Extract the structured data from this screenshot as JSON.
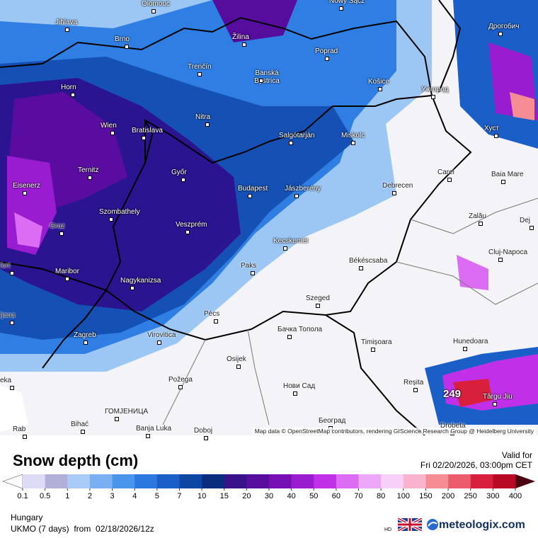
{
  "map": {
    "cities": [
      "Olomouc",
      "Nowy Sącz",
      "Jihlava",
      "Brno",
      "Žilina",
      "Poprad",
      "Дрогобич",
      "Trenčín",
      "Banská Bystrica",
      "Horn",
      "Košice",
      "Ужгород",
      "Wien",
      "Bratislava",
      "Nitra",
      "Salgótarján",
      "Miskolc",
      "Хуст",
      "Ternitz",
      "Győr",
      "Carei",
      "Baia Mare",
      "Eisenerz",
      "Budapest",
      "Jászberény",
      "Debrecen",
      "Szombathely",
      "Zalău",
      "Graz",
      "Veszprém",
      "Dej",
      "Kecskemét",
      "Cluj-Napoca",
      "Békéscsaba",
      "Paks",
      "furt",
      "Maribor",
      "Nagykanizsa",
      "Szeged",
      "ljana",
      "Pécs",
      "Zagreb",
      "Virovitica",
      "Бачка Топола",
      "Hunedoara",
      "Timișoara",
      "Osijek",
      "eka",
      "Požega",
      "Reșita",
      "Нови Сад",
      "Târgu Jiu",
      "ГОМЈЕНИЦА",
      "Bihać",
      "Banja Luka",
      "Београд",
      "Drobeta",
      "Doboj",
      "Rab"
    ],
    "max_label": "249",
    "attribution": "Map data © OpenStreetMap contributors, rendering GIScience Research Group @ Heidelberg University"
  },
  "legend": {
    "title": "Snow depth (cm)",
    "valid_label": "Valid for",
    "valid_time": "Fri 02/20/2026, 03:00pm CET",
    "ticks": [
      0.1,
      0.5,
      1,
      2,
      3,
      4,
      5,
      7,
      10,
      15,
      20,
      30,
      40,
      50,
      60,
      70,
      80,
      100,
      150,
      200,
      250,
      300,
      400
    ],
    "colors": [
      "#dcdaf4",
      "#b2b0d8",
      "#a8ccf6",
      "#78b0f2",
      "#4a94ec",
      "#2a78e0",
      "#1a5ec8",
      "#0e46a4",
      "#0a2c7c",
      "#3a1288",
      "#560c9c",
      "#7610b4",
      "#9a1cd0",
      "#c030e8",
      "#dc6cf4",
      "#eca8f8",
      "#f6d0f8",
      "#f8b4cc",
      "#f68c94",
      "#ec5c6c",
      "#d8203c",
      "#b80a24"
    ],
    "under_color": "#ffffff",
    "over_color": "#4a0010"
  },
  "footer": {
    "region": "Hungary",
    "model": "UKMO (7 days)  from  02/18/2026/12z",
    "hd": "HD",
    "brand": "meteologix.com"
  }
}
